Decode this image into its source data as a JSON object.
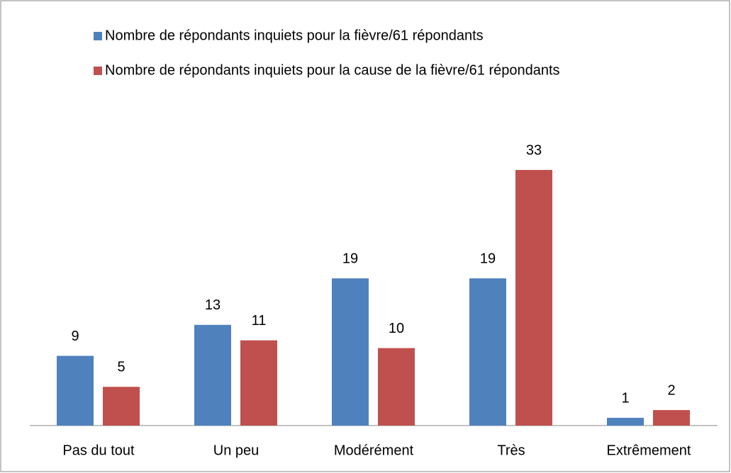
{
  "chart_data": {
    "type": "bar",
    "categories": [
      "Pas du tout",
      "Un peu",
      "Modérément",
      "Très",
      "Extrêmement"
    ],
    "series": [
      {
        "name": "Nombre de répondants inquiets pour la fièvre/61 répondants",
        "color": "#4f81bd",
        "values": [
          9,
          13,
          19,
          19,
          1
        ]
      },
      {
        "name": "Nombre de répondants inquiets pour la cause de la fièvre/61 répondants",
        "color": "#c0504d",
        "values": [
          5,
          11,
          10,
          33,
          2
        ]
      }
    ],
    "legend": "top"
  }
}
